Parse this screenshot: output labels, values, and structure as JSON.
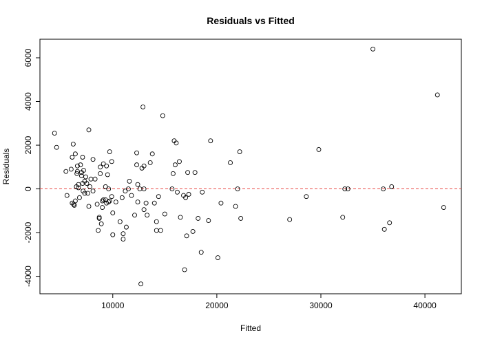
{
  "chart_data": {
    "type": "scatter",
    "title": "Residuals vs Fitted",
    "xlabel": "Fitted",
    "ylabel": "Residuals",
    "xlim": [
      3000,
      43500
    ],
    "ylim": [
      -4800,
      6850
    ],
    "x_ticks": [
      10000,
      20000,
      30000,
      40000
    ],
    "y_ticks": [
      -4000,
      -2000,
      0,
      2000,
      4000,
      6000
    ],
    "x_tick_labels": [
      "10000",
      "20000",
      "30000",
      "40000"
    ],
    "y_tick_labels": [
      "-4000",
      "-2000",
      "0",
      "2000",
      "4000",
      "6000"
    ],
    "grid": false,
    "reference_line": {
      "y": 0,
      "style": "dashed",
      "color": "#e8433f"
    },
    "point_color": "#000000",
    "points": [
      [
        4400,
        2550
      ],
      [
        4600,
        1900
      ],
      [
        5500,
        800
      ],
      [
        5600,
        -300
      ],
      [
        6000,
        900
      ],
      [
        6100,
        1450
      ],
      [
        6200,
        2050
      ],
      [
        6400,
        1600
      ],
      [
        6100,
        -650
      ],
      [
        6250,
        -700
      ],
      [
        6300,
        -750
      ],
      [
        6400,
        -550
      ],
      [
        6500,
        100
      ],
      [
        6550,
        700
      ],
      [
        6600,
        800
      ],
      [
        6600,
        1050
      ],
      [
        6700,
        200
      ],
      [
        6700,
        50
      ],
      [
        6800,
        -400
      ],
      [
        6900,
        1100
      ],
      [
        7000,
        750
      ],
      [
        7000,
        600
      ],
      [
        7100,
        1450
      ],
      [
        7100,
        250
      ],
      [
        7150,
        -100
      ],
      [
        7200,
        850
      ],
      [
        7300,
        -200
      ],
      [
        7300,
        350
      ],
      [
        7400,
        550
      ],
      [
        7500,
        250
      ],
      [
        7600,
        -200
      ],
      [
        7700,
        2700
      ],
      [
        7800,
        100
      ],
      [
        7700,
        -800
      ],
      [
        7900,
        450
      ],
      [
        8100,
        -100
      ],
      [
        8100,
        1350
      ],
      [
        8300,
        450
      ],
      [
        8500,
        -700
      ],
      [
        8600,
        -1900
      ],
      [
        8700,
        -1300
      ],
      [
        8700,
        -1350
      ],
      [
        8800,
        700
      ],
      [
        8800,
        1000
      ],
      [
        8900,
        -1600
      ],
      [
        9000,
        -550
      ],
      [
        9000,
        -850
      ],
      [
        9100,
        -500
      ],
      [
        9100,
        1150
      ],
      [
        9300,
        100
      ],
      [
        9300,
        -500
      ],
      [
        9400,
        -650
      ],
      [
        9400,
        1050
      ],
      [
        9500,
        650
      ],
      [
        9600,
        0
      ],
      [
        9600,
        -600
      ],
      [
        9700,
        -550
      ],
      [
        9700,
        1700
      ],
      [
        9900,
        1250
      ],
      [
        9900,
        -350
      ],
      [
        10000,
        -2100
      ],
      [
        10000,
        -1100
      ],
      [
        10300,
        -600
      ],
      [
        10700,
        -1500
      ],
      [
        10900,
        -400
      ],
      [
        11000,
        -2300
      ],
      [
        11000,
        -2050
      ],
      [
        11200,
        -100
      ],
      [
        11300,
        -1750
      ],
      [
        11500,
        0
      ],
      [
        11600,
        350
      ],
      [
        11800,
        -300
      ],
      [
        12100,
        -1200
      ],
      [
        12300,
        1650
      ],
      [
        12300,
        1100
      ],
      [
        12400,
        200
      ],
      [
        12400,
        -600
      ],
      [
        12600,
        0
      ],
      [
        12700,
        -4350
      ],
      [
        12800,
        950
      ],
      [
        12900,
        3750
      ],
      [
        13000,
        1050
      ],
      [
        13000,
        0
      ],
      [
        13000,
        -950
      ],
      [
        13200,
        -650
      ],
      [
        13300,
        -1200
      ],
      [
        13600,
        1200
      ],
      [
        13800,
        1600
      ],
      [
        14000,
        -650
      ],
      [
        14200,
        -1900
      ],
      [
        14200,
        -1500
      ],
      [
        14400,
        -350
      ],
      [
        14600,
        -1900
      ],
      [
        14800,
        3350
      ],
      [
        15000,
        -1150
      ],
      [
        15700,
        0
      ],
      [
        15800,
        700
      ],
      [
        15900,
        2200
      ],
      [
        16000,
        1100
      ],
      [
        16100,
        2100
      ],
      [
        16200,
        -150
      ],
      [
        16400,
        1250
      ],
      [
        16500,
        -1300
      ],
      [
        16800,
        -300
      ],
      [
        16900,
        -3700
      ],
      [
        17000,
        -400
      ],
      [
        17100,
        -2150
      ],
      [
        17200,
        750
      ],
      [
        17300,
        -250
      ],
      [
        17700,
        -1950
      ],
      [
        17900,
        750
      ],
      [
        18200,
        -1350
      ],
      [
        18500,
        -2900
      ],
      [
        18600,
        -150
      ],
      [
        19200,
        -1450
      ],
      [
        19400,
        2200
      ],
      [
        20100,
        -3150
      ],
      [
        20400,
        -650
      ],
      [
        21300,
        1200
      ],
      [
        21800,
        -800
      ],
      [
        22000,
        0
      ],
      [
        22200,
        1700
      ],
      [
        22300,
        -1350
      ],
      [
        27000,
        -1400
      ],
      [
        28600,
        -350
      ],
      [
        29800,
        1800
      ],
      [
        32100,
        -1300
      ],
      [
        32300,
        0
      ],
      [
        32600,
        0
      ],
      [
        35000,
        6400
      ],
      [
        36000,
        0
      ],
      [
        36100,
        -1850
      ],
      [
        36600,
        -1550
      ],
      [
        36800,
        100
      ],
      [
        41200,
        4300
      ],
      [
        41800,
        -850
      ]
    ]
  }
}
